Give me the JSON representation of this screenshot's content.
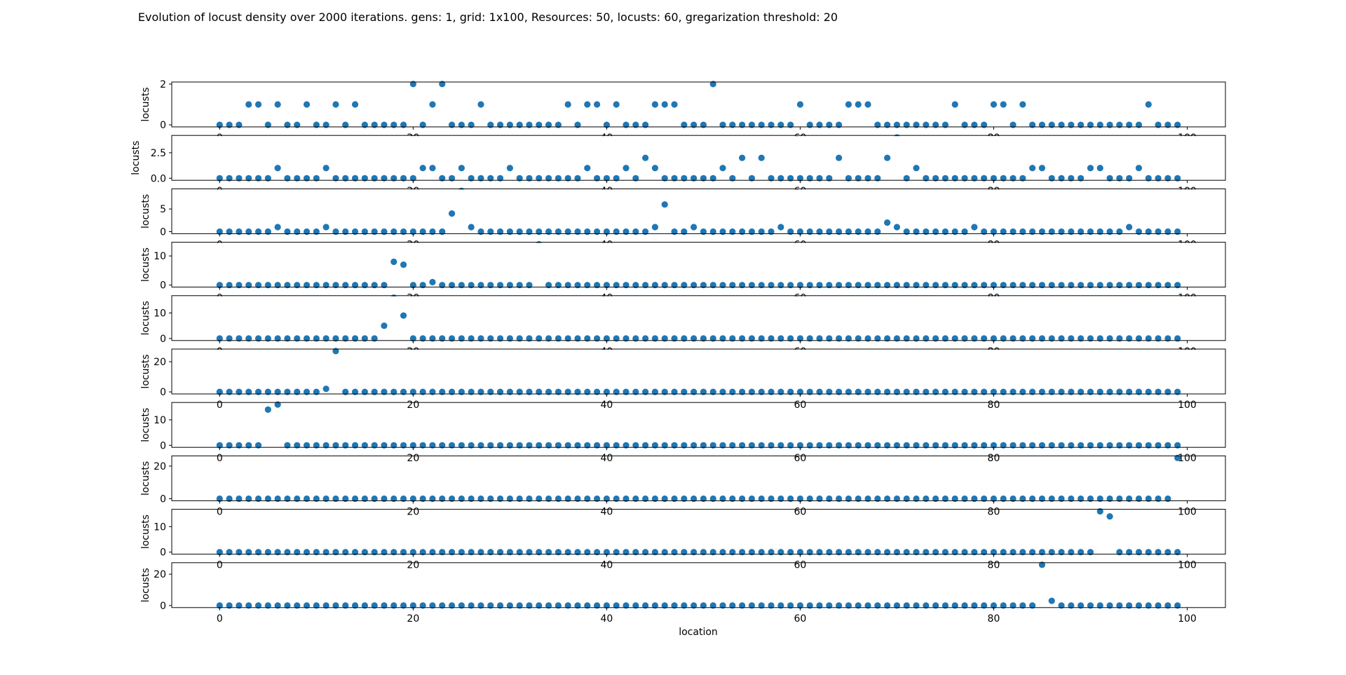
{
  "chart_data": {
    "type": "scatter",
    "title": "Evolution of locust density over 2000 iterations. gens: 1, grid: 1x100, Resources: 50, locusts: 60, gregarization threshold: 20",
    "xlabel": "location",
    "xlim": [
      -4.95,
      103.95
    ],
    "x_ticks": [
      0,
      20,
      40,
      60,
      80,
      100
    ],
    "x_tick_labels": [
      "0",
      "20",
      "40",
      "60",
      "80",
      "100"
    ],
    "grid": false,
    "point_color": "#1f77b4",
    "x": [
      0,
      1,
      2,
      3,
      4,
      5,
      6,
      7,
      8,
      9,
      10,
      11,
      12,
      13,
      14,
      15,
      16,
      17,
      18,
      19,
      20,
      21,
      22,
      23,
      24,
      25,
      26,
      27,
      28,
      29,
      30,
      31,
      32,
      33,
      34,
      35,
      36,
      37,
      38,
      39,
      40,
      41,
      42,
      43,
      44,
      45,
      46,
      47,
      48,
      49,
      50,
      51,
      52,
      53,
      54,
      55,
      56,
      57,
      58,
      59,
      60,
      61,
      62,
      63,
      64,
      65,
      66,
      67,
      68,
      69,
      70,
      71,
      72,
      73,
      74,
      75,
      76,
      77,
      78,
      79,
      80,
      81,
      82,
      83,
      84,
      85,
      86,
      87,
      88,
      89,
      90,
      91,
      92,
      93,
      94,
      95,
      96,
      97,
      98,
      99
    ],
    "subplots": [
      {
        "ylabel": "locusts",
        "ylim": [
          -0.1,
          2.1
        ],
        "y_ticks": [
          0,
          2
        ],
        "y_tick_labels": [
          "0",
          "2"
        ],
        "values": [
          0,
          0,
          0,
          1,
          1,
          0,
          1,
          0,
          0,
          1,
          0,
          0,
          1,
          0,
          1,
          0,
          0,
          0,
          0,
          0,
          2,
          0,
          1,
          2,
          0,
          0,
          0,
          1,
          0,
          0,
          0,
          0,
          0,
          0,
          0,
          0,
          1,
          0,
          1,
          1,
          0,
          1,
          0,
          0,
          0,
          1,
          1,
          1,
          0,
          0,
          0,
          2,
          0,
          0,
          0,
          0,
          0,
          0,
          0,
          0,
          1,
          0,
          0,
          0,
          0,
          1,
          1,
          1,
          0,
          0,
          0,
          0,
          0,
          0,
          0,
          0,
          1,
          0,
          0,
          0,
          1,
          1,
          0,
          1,
          0,
          0,
          0,
          0,
          0,
          0,
          0,
          0,
          0,
          0,
          0,
          0,
          1,
          0,
          0,
          0
        ]
      },
      {
        "ylabel": "locusts",
        "ylim": [
          -0.2,
          4.2
        ],
        "y_ticks": [
          0,
          2.5
        ],
        "y_tick_labels": [
          "0.0",
          "2.5"
        ],
        "values": [
          0,
          0,
          0,
          0,
          0,
          0,
          1,
          0,
          0,
          0,
          0,
          1,
          0,
          0,
          0,
          0,
          0,
          0,
          0,
          0,
          0,
          1,
          1,
          0,
          0,
          1,
          0,
          0,
          0,
          0,
          1,
          0,
          0,
          0,
          0,
          0,
          0,
          0,
          1,
          0,
          0,
          0,
          1,
          0,
          2,
          1,
          0,
          0,
          0,
          0,
          0,
          0,
          1,
          0,
          2,
          0,
          2,
          0,
          0,
          0,
          0,
          0,
          0,
          0,
          2,
          0,
          0,
          0,
          0,
          2,
          4,
          0,
          1,
          0,
          0,
          0,
          0,
          0,
          0,
          0,
          0,
          0,
          0,
          0,
          1,
          1,
          0,
          0,
          0,
          0,
          1,
          1,
          0,
          0,
          0,
          1,
          0,
          0,
          0,
          0
        ]
      },
      {
        "ylabel": "locusts",
        "ylim": [
          -0.45,
          9.45
        ],
        "y_ticks": [
          0,
          5
        ],
        "y_tick_labels": [
          "0",
          "5"
        ],
        "values": [
          0,
          0,
          0,
          0,
          0,
          0,
          1,
          0,
          0,
          0,
          0,
          1,
          0,
          0,
          0,
          0,
          0,
          0,
          0,
          0,
          0,
          0,
          0,
          0,
          4,
          9,
          1,
          0,
          0,
          0,
          0,
          0,
          0,
          0,
          0,
          0,
          0,
          0,
          0,
          0,
          0,
          0,
          0,
          0,
          0,
          1,
          6,
          0,
          0,
          1,
          0,
          0,
          0,
          0,
          0,
          0,
          0,
          0,
          1,
          0,
          0,
          0,
          0,
          0,
          0,
          0,
          0,
          0,
          0,
          2,
          1,
          0,
          0,
          0,
          0,
          0,
          0,
          0,
          1,
          0,
          0,
          0,
          0,
          0,
          0,
          0,
          0,
          0,
          0,
          0,
          0,
          0,
          0,
          0,
          1,
          0,
          0,
          0,
          0,
          0
        ]
      },
      {
        "ylabel": "locusts",
        "ylim": [
          -0.7,
          14.7
        ],
        "y_ticks": [
          0,
          10
        ],
        "y_tick_labels": [
          "0",
          "10"
        ],
        "values": [
          0,
          0,
          0,
          0,
          0,
          0,
          0,
          0,
          0,
          0,
          0,
          0,
          0,
          0,
          0,
          0,
          0,
          0,
          8,
          7,
          0,
          0,
          1,
          0,
          0,
          0,
          0,
          0,
          0,
          0,
          0,
          0,
          0,
          14,
          0,
          0,
          0,
          0,
          0,
          0,
          0,
          0,
          0,
          0,
          0,
          0,
          0,
          0,
          0,
          0,
          0,
          0,
          0,
          0,
          0,
          0,
          0,
          0,
          0,
          0,
          0,
          0,
          0,
          0,
          0,
          0,
          0,
          0,
          0,
          0,
          0,
          0,
          0,
          0,
          0,
          0,
          0,
          0,
          0,
          0,
          0,
          0,
          0,
          0,
          0,
          0,
          0,
          0,
          0,
          0,
          0,
          0,
          0,
          0,
          0,
          0,
          0,
          0,
          0,
          0
        ]
      },
      {
        "ylabel": "locusts",
        "ylim": [
          -0.8,
          16.8
        ],
        "y_ticks": [
          0,
          10
        ],
        "y_tick_labels": [
          "0",
          "10"
        ],
        "values": [
          0,
          0,
          0,
          0,
          0,
          0,
          0,
          0,
          0,
          0,
          0,
          0,
          0,
          0,
          0,
          0,
          0,
          5,
          16,
          9,
          0,
          0,
          0,
          0,
          0,
          0,
          0,
          0,
          0,
          0,
          0,
          0,
          0,
          0,
          0,
          0,
          0,
          0,
          0,
          0,
          0,
          0,
          0,
          0,
          0,
          0,
          0,
          0,
          0,
          0,
          0,
          0,
          0,
          0,
          0,
          0,
          0,
          0,
          0,
          0,
          0,
          0,
          0,
          0,
          0,
          0,
          0,
          0,
          0,
          0,
          0,
          0,
          0,
          0,
          0,
          0,
          0,
          0,
          0,
          0,
          0,
          0,
          0,
          0,
          0,
          0,
          0,
          0,
          0,
          0,
          0,
          0,
          0,
          0,
          0,
          0,
          0,
          0,
          0,
          0
        ]
      },
      {
        "ylabel": "locusts",
        "ylim": [
          -1.35,
          28.35
        ],
        "y_ticks": [
          0,
          20
        ],
        "y_tick_labels": [
          "0",
          "20"
        ],
        "values": [
          0,
          0,
          0,
          0,
          0,
          0,
          0,
          0,
          0,
          0,
          0,
          2,
          27,
          0,
          0,
          0,
          0,
          0,
          0,
          0,
          0,
          0,
          0,
          0,
          0,
          0,
          0,
          0,
          0,
          0,
          0,
          0,
          0,
          0,
          0,
          0,
          0,
          0,
          0,
          0,
          0,
          0,
          0,
          0,
          0,
          0,
          0,
          0,
          0,
          0,
          0,
          0,
          0,
          0,
          0,
          0,
          0,
          0,
          0,
          0,
          0,
          0,
          0,
          0,
          0,
          0,
          0,
          0,
          0,
          0,
          0,
          0,
          0,
          0,
          0,
          0,
          0,
          0,
          0,
          0,
          0,
          0,
          0,
          0,
          0,
          0,
          0,
          0,
          0,
          0,
          0,
          0,
          0,
          0,
          0,
          0,
          0,
          0,
          0,
          0
        ]
      },
      {
        "ylabel": "locusts",
        "ylim": [
          -0.8,
          16.8
        ],
        "y_ticks": [
          0,
          10
        ],
        "y_tick_labels": [
          "0",
          "10"
        ],
        "values": [
          0,
          0,
          0,
          0,
          0,
          14,
          16,
          0,
          0,
          0,
          0,
          0,
          0,
          0,
          0,
          0,
          0,
          0,
          0,
          0,
          0,
          0,
          0,
          0,
          0,
          0,
          0,
          0,
          0,
          0,
          0,
          0,
          0,
          0,
          0,
          0,
          0,
          0,
          0,
          0,
          0,
          0,
          0,
          0,
          0,
          0,
          0,
          0,
          0,
          0,
          0,
          0,
          0,
          0,
          0,
          0,
          0,
          0,
          0,
          0,
          0,
          0,
          0,
          0,
          0,
          0,
          0,
          0,
          0,
          0,
          0,
          0,
          0,
          0,
          0,
          0,
          0,
          0,
          0,
          0,
          0,
          0,
          0,
          0,
          0,
          0,
          0,
          0,
          0,
          0,
          0,
          0,
          0,
          0,
          0,
          0,
          0,
          0,
          0,
          0
        ]
      },
      {
        "ylabel": "locusts",
        "ylim": [
          -1.25,
          26.25
        ],
        "y_ticks": [
          0,
          20
        ],
        "y_tick_labels": [
          "0",
          "20"
        ],
        "values": [
          0,
          0,
          0,
          0,
          0,
          0,
          0,
          0,
          0,
          0,
          0,
          0,
          0,
          0,
          0,
          0,
          0,
          0,
          0,
          0,
          0,
          0,
          0,
          0,
          0,
          0,
          0,
          0,
          0,
          0,
          0,
          0,
          0,
          0,
          0,
          0,
          0,
          0,
          0,
          0,
          0,
          0,
          0,
          0,
          0,
          0,
          0,
          0,
          0,
          0,
          0,
          0,
          0,
          0,
          0,
          0,
          0,
          0,
          0,
          0,
          0,
          0,
          0,
          0,
          0,
          0,
          0,
          0,
          0,
          0,
          0,
          0,
          0,
          0,
          0,
          0,
          0,
          0,
          0,
          0,
          0,
          0,
          0,
          0,
          0,
          0,
          0,
          0,
          0,
          0,
          0,
          0,
          0,
          0,
          0,
          0,
          0,
          0,
          0,
          25
        ]
      },
      {
        "ylabel": "locusts",
        "ylim": [
          -0.8,
          16.8
        ],
        "y_ticks": [
          0,
          10
        ],
        "y_tick_labels": [
          "0",
          "10"
        ],
        "values": [
          0,
          0,
          0,
          0,
          0,
          0,
          0,
          0,
          0,
          0,
          0,
          0,
          0,
          0,
          0,
          0,
          0,
          0,
          0,
          0,
          0,
          0,
          0,
          0,
          0,
          0,
          0,
          0,
          0,
          0,
          0,
          0,
          0,
          0,
          0,
          0,
          0,
          0,
          0,
          0,
          0,
          0,
          0,
          0,
          0,
          0,
          0,
          0,
          0,
          0,
          0,
          0,
          0,
          0,
          0,
          0,
          0,
          0,
          0,
          0,
          0,
          0,
          0,
          0,
          0,
          0,
          0,
          0,
          0,
          0,
          0,
          0,
          0,
          0,
          0,
          0,
          0,
          0,
          0,
          0,
          0,
          0,
          0,
          0,
          0,
          0,
          0,
          0,
          0,
          0,
          0,
          16,
          14,
          0,
          0,
          0,
          0,
          0,
          0,
          0
        ]
      },
      {
        "ylabel": "locusts",
        "ylim": [
          -1.3,
          27.3
        ],
        "y_ticks": [
          0,
          20
        ],
        "y_tick_labels": [
          "0",
          "20"
        ],
        "values": [
          0,
          0,
          0,
          0,
          0,
          0,
          0,
          0,
          0,
          0,
          0,
          0,
          0,
          0,
          0,
          0,
          0,
          0,
          0,
          0,
          0,
          0,
          0,
          0,
          0,
          0,
          0,
          0,
          0,
          0,
          0,
          0,
          0,
          0,
          0,
          0,
          0,
          0,
          0,
          0,
          0,
          0,
          0,
          0,
          0,
          0,
          0,
          0,
          0,
          0,
          0,
          0,
          0,
          0,
          0,
          0,
          0,
          0,
          0,
          0,
          0,
          0,
          0,
          0,
          0,
          0,
          0,
          0,
          0,
          0,
          0,
          0,
          0,
          0,
          0,
          0,
          0,
          0,
          0,
          0,
          0,
          0,
          0,
          0,
          0,
          26,
          3,
          0,
          0,
          0,
          0,
          0,
          0,
          0,
          0,
          0,
          0,
          0,
          0,
          0
        ]
      }
    ]
  }
}
